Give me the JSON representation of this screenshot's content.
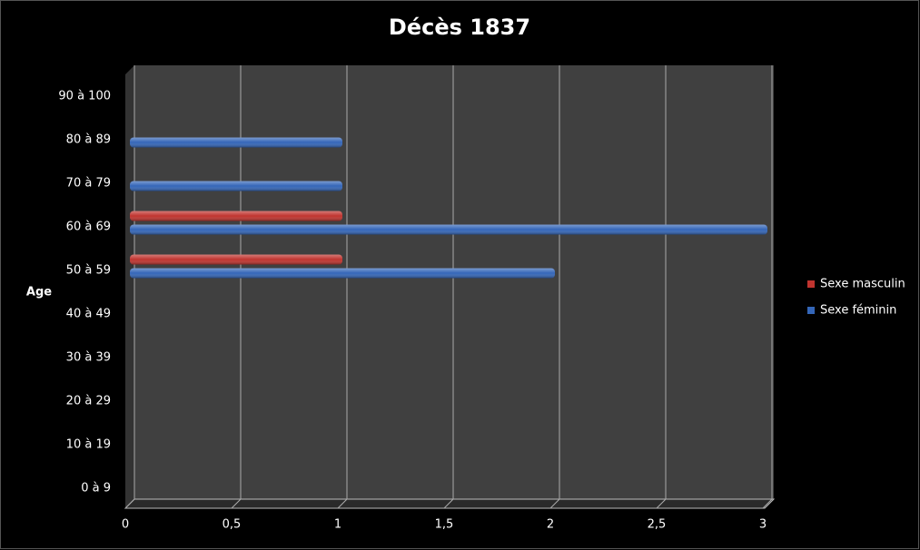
{
  "chart_data": {
    "type": "bar",
    "orientation": "horizontal",
    "title": "Décès 1837",
    "y_label": "Age",
    "categories": [
      "0 à 9",
      "10 à 19",
      "20 à 29",
      "30 à 39",
      "40 à 49",
      "50 à 59",
      "60 à 69",
      "70 à 79",
      "80 à 89",
      "90 à 100"
    ],
    "series": [
      {
        "name": "Sexe masculin",
        "color": "#c0342f",
        "values": [
          0,
          0,
          0,
          0,
          0,
          1,
          1,
          0,
          0,
          0
        ]
      },
      {
        "name": "Sexe féminin",
        "color": "#3466b8",
        "values": [
          0,
          0,
          0,
          0,
          0,
          2,
          3,
          1,
          1,
          0
        ]
      }
    ],
    "xlim": [
      0,
      3
    ],
    "xticks": [
      0,
      {
        "value": 0.5,
        "label": "0,5"
      },
      1,
      {
        "value": 1.5,
        "label": "1,5"
      },
      2,
      {
        "value": 2.5,
        "label": "2,5"
      },
      3
    ],
    "grid": true,
    "legend": "right"
  }
}
